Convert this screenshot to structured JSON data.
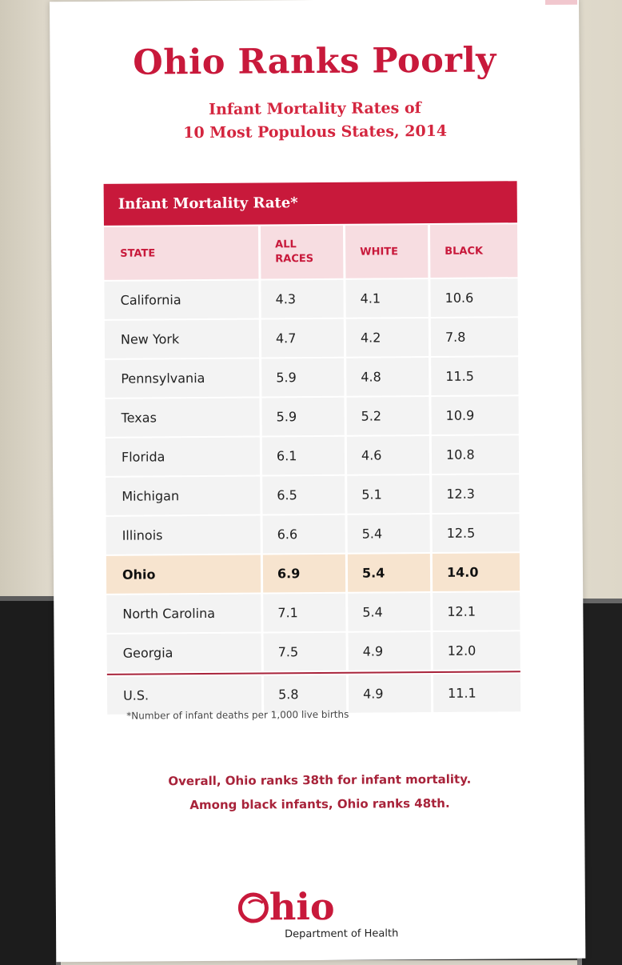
{
  "banner": {
    "title": "Ohio Ranks Poorly",
    "subtitle_line1": "Infant Mortality Rates of",
    "subtitle_line2": "10 Most Populous States, 2014"
  },
  "table": {
    "header": "Infant Mortality Rate*",
    "columns": [
      "STATE",
      "ALL\nRACES",
      "WHITE",
      "BLACK"
    ],
    "rows": [
      {
        "state": "California",
        "all": "4.3",
        "white": "4.1",
        "black": "10.6"
      },
      {
        "state": "New York",
        "all": "4.7",
        "white": "4.2",
        "black": "7.8"
      },
      {
        "state": "Pennsylvania",
        "all": "5.9",
        "white": "4.8",
        "black": "11.5"
      },
      {
        "state": "Texas",
        "all": "5.9",
        "white": "5.2",
        "black": "10.9"
      },
      {
        "state": "Florida",
        "all": "6.1",
        "white": "4.6",
        "black": "10.8"
      },
      {
        "state": "Michigan",
        "all": "6.5",
        "white": "5.1",
        "black": "12.3"
      },
      {
        "state": "Illinois",
        "all": "6.6",
        "white": "5.4",
        "black": "12.5"
      },
      {
        "state": "Ohio",
        "all": "6.9",
        "white": "5.4",
        "black": "14.0",
        "highlight": true
      },
      {
        "state": "North Carolina",
        "all": "7.1",
        "white": "5.4",
        "black": "12.1"
      },
      {
        "state": "Georgia",
        "all": "7.5",
        "white": "4.9",
        "black": "12.0"
      },
      {
        "state": "U.S.",
        "all": "5.8",
        "white": "4.9",
        "black": "11.1",
        "total": true
      }
    ],
    "footnote": "*Number of infant deaths per 1,000 live births"
  },
  "summary": {
    "line1": "Overall, Ohio ranks 38th for infant mortality.",
    "line2": "Among black infants, Ohio ranks 48th."
  },
  "logo": {
    "word": "hio",
    "department": "Department of Health"
  },
  "colors": {
    "brand_red": "#c8193b",
    "header_pink": "#f7dde1",
    "row_gray": "#f3f3f3",
    "highlight": "#f7e4cf"
  }
}
